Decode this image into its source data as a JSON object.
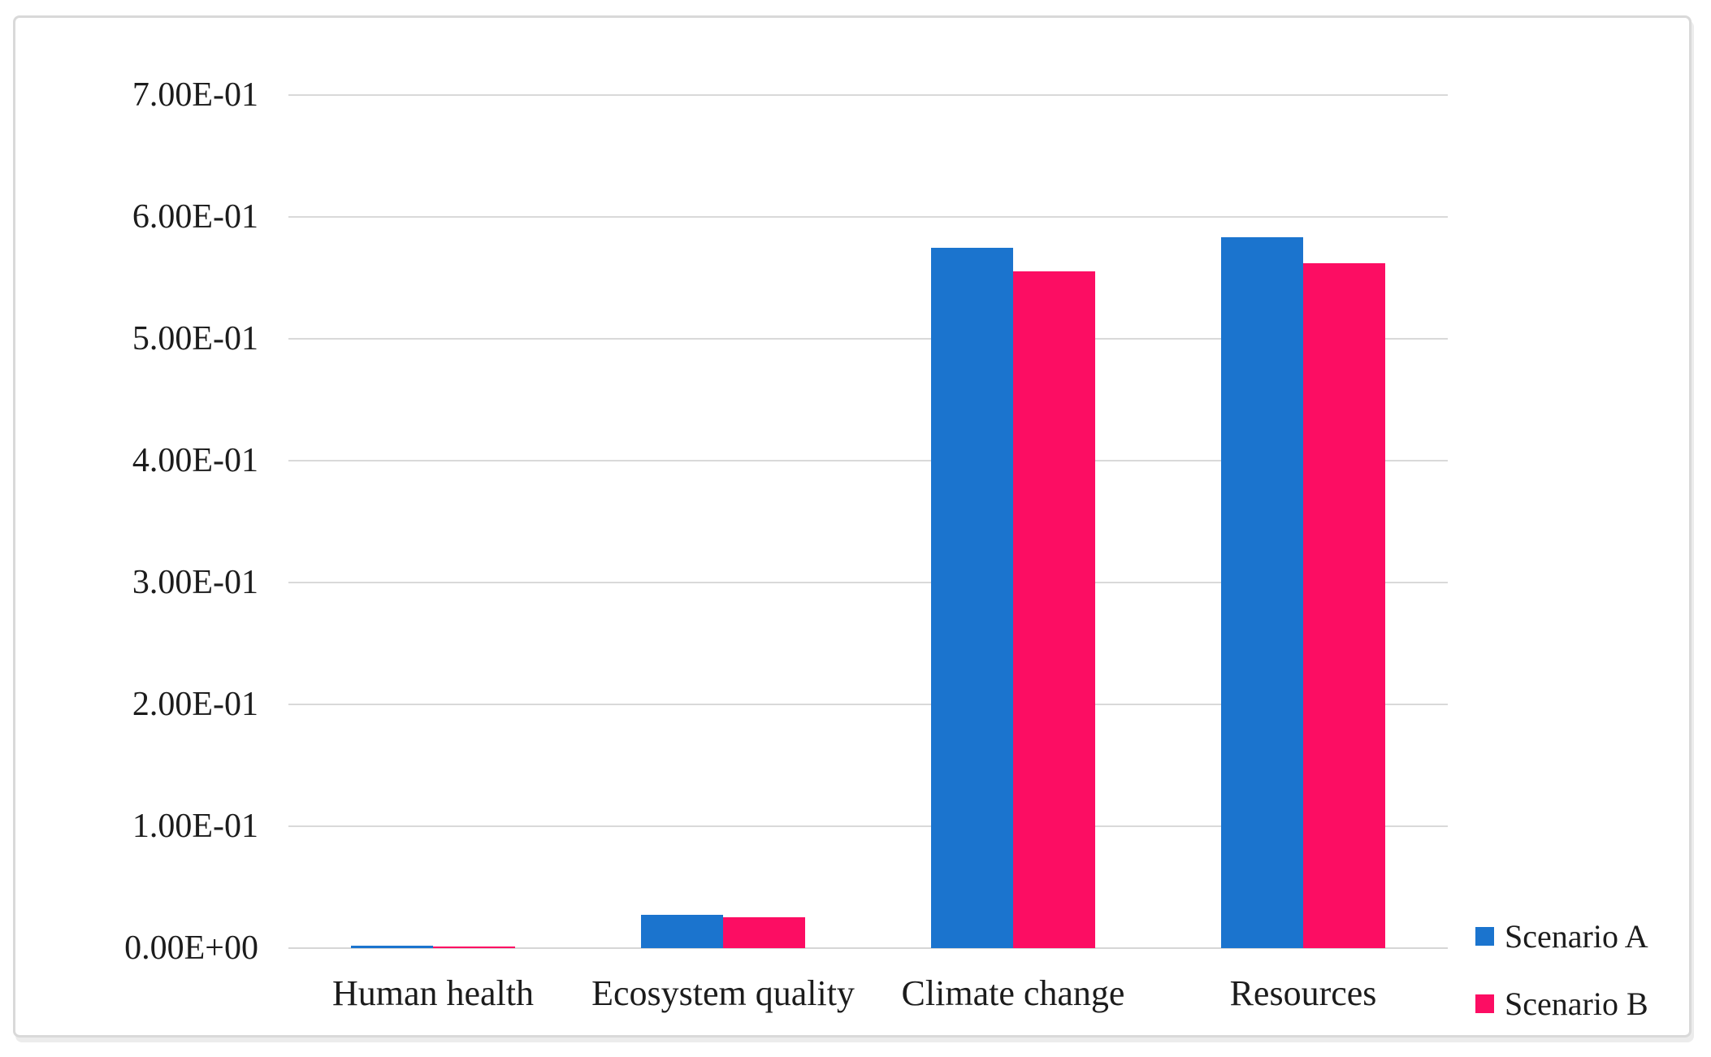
{
  "figure": {
    "background": "#ffffff",
    "frame_color": "#d9d9d9",
    "text_color": "#1c1c1c"
  },
  "chart_data": {
    "type": "bar",
    "title": "",
    "xlabel": "",
    "ylabel": "",
    "categories": [
      "Human health",
      "Ecosystem quality",
      "Climate change",
      "Resources"
    ],
    "series": [
      {
        "name": "Scenario A",
        "color": "#1b74ce",
        "values": [
          0.002,
          0.027,
          0.575,
          0.583
        ]
      },
      {
        "name": "Scenario B",
        "color": "#fc0d63",
        "values": [
          0.001,
          0.025,
          0.555,
          0.562
        ]
      }
    ],
    "ylim": [
      0,
      0.7
    ],
    "ytick_step": 0.1,
    "ytick_labels": [
      "0.00E+00",
      "1.00E-01",
      "2.00E-01",
      "3.00E-01",
      "4.00E-01",
      "5.00E-01",
      "6.00E-01",
      "7.00E-01"
    ],
    "grid": "horizontal",
    "gridline_color": "#d9d9d9",
    "axisline_color": "#d6d6d6",
    "legend_position": "bottom-right",
    "legend": [
      "Scenario A",
      "Scenario B"
    ]
  }
}
